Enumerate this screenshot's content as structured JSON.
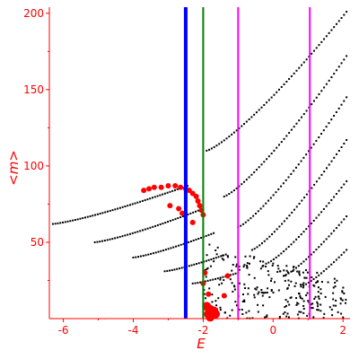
{
  "chart_data": {
    "type": "scatter",
    "title": "",
    "xlabel": "E",
    "ylabel": "<m>",
    "xlim": [
      -6.4,
      2.2
    ],
    "ylim": [
      0,
      204
    ],
    "xticks": [
      -6,
      -4,
      -2,
      0,
      2
    ],
    "yticks": [
      50,
      100,
      150,
      200
    ],
    "grid": false,
    "colors": {
      "axes": "#ff0000",
      "points": "#000000",
      "highlight_points": "#ff0000",
      "vline_blue": "#0000ff",
      "vline_green": "#008000",
      "vline_magenta": "#ff00ff"
    },
    "vertical_lines": [
      {
        "x": -2.5,
        "color": "#0000ff"
      },
      {
        "x": -2.0,
        "color": "#008000"
      },
      {
        "x": -1.0,
        "color": "#ff00ff"
      },
      {
        "x": 1.05,
        "color": "#ff00ff"
      }
    ],
    "black_branches": [
      {
        "x_start": -6.3,
        "x_end": -2.45,
        "y_start": 62,
        "y_end": 87
      },
      {
        "x_start": -5.1,
        "x_end": -2.0,
        "y_start": 50,
        "y_end": 72
      },
      {
        "x_start": -4.0,
        "x_end": -1.7,
        "y_start": 40,
        "y_end": 56
      },
      {
        "x_start": -3.1,
        "x_end": -1.35,
        "y_start": 31,
        "y_end": 42
      },
      {
        "x_start": -2.3,
        "x_end": -1.0,
        "y_start": 23,
        "y_end": 30
      },
      {
        "x_start": -1.9,
        "x_end": 2.1,
        "y_start": 110,
        "y_end": 201
      },
      {
        "x_start": -1.4,
        "x_end": 2.1,
        "y_start": 80,
        "y_end": 172
      },
      {
        "x_start": -1.0,
        "x_end": 2.1,
        "y_start": 60,
        "y_end": 145
      },
      {
        "x_start": -0.6,
        "x_end": 2.1,
        "y_start": 45,
        "y_end": 117
      },
      {
        "x_start": -0.2,
        "x_end": 2.1,
        "y_start": 36,
        "y_end": 90
      },
      {
        "x_start": 0.3,
        "x_end": 2.1,
        "y_start": 28,
        "y_end": 67
      },
      {
        "x_start": 0.8,
        "x_end": 2.1,
        "y_start": 21,
        "y_end": 45
      }
    ],
    "red_points": [
      [
        -3.7,
        84
      ],
      [
        -3.55,
        85
      ],
      [
        -3.4,
        86
      ],
      [
        -3.2,
        86
      ],
      [
        -3.0,
        87
      ],
      [
        -2.8,
        87
      ],
      [
        -2.65,
        86
      ],
      [
        -2.5,
        85
      ],
      [
        -2.4,
        84
      ],
      [
        -2.3,
        82
      ],
      [
        -2.2,
        80
      ],
      [
        -2.15,
        77
      ],
      [
        -2.1,
        74
      ],
      [
        -2.05,
        71
      ],
      [
        -2.0,
        68
      ],
      [
        -2.95,
        74
      ],
      [
        -2.7,
        72
      ],
      [
        -2.6,
        69
      ],
      [
        -2.3,
        63
      ],
      [
        -1.95,
        30
      ],
      [
        -2.0,
        23
      ],
      [
        -1.85,
        16
      ],
      [
        -1.8,
        6
      ],
      [
        -1.75,
        4
      ],
      [
        -1.9,
        8
      ],
      [
        -1.7,
        5
      ],
      [
        -1.85,
        3
      ],
      [
        -1.65,
        3
      ],
      [
        -1.8,
        1
      ],
      [
        -1.4,
        15
      ],
      [
        -1.3,
        28
      ]
    ],
    "scatter_cloud": {
      "x_start": -2.0,
      "x_end": 2.1,
      "y_start": 0,
      "y_end": 50,
      "count": 260
    }
  }
}
